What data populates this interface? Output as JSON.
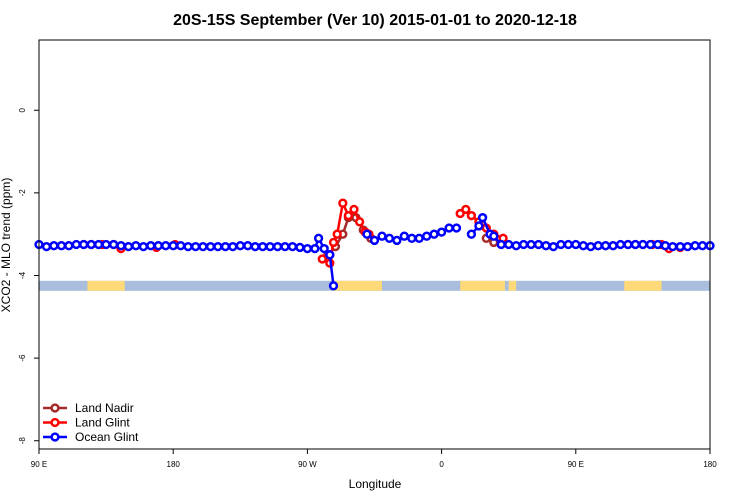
{
  "chart_data": {
    "type": "line",
    "title": "20S-15S September (Ver 10)   2015-01-01 to 2020-12-18",
    "xlabel": "Longitude",
    "ylabel": "XCO2 - MLO trend (ppm)",
    "xlim": [
      0,
      360
    ],
    "ylim": [
      -8.2,
      1.7
    ],
    "xticks": [
      {
        "x": 0,
        "label": "90 E"
      },
      {
        "x": 72,
        "label": "180"
      },
      {
        "x": 144,
        "label": "90 W"
      },
      {
        "x": 216,
        "label": "0"
      },
      {
        "x": 288,
        "label": "90 E"
      },
      {
        "x": 360,
        "label": "180"
      }
    ],
    "yticks": [
      {
        "y": 0,
        "label": "0"
      },
      {
        "y": -2,
        "label": "-2"
      },
      {
        "y": -4,
        "label": "-4"
      },
      {
        "y": -6,
        "label": "-6"
      },
      {
        "y": -8,
        "label": "-8"
      }
    ],
    "land_mask": {
      "y": -4.25,
      "ocean_color": "#a8bedc",
      "land_color": "#fdd979",
      "land_segments": [
        [
          26,
          46
        ],
        [
          158,
          184
        ],
        [
          226,
          250
        ],
        [
          252,
          256
        ],
        [
          314,
          334
        ]
      ]
    },
    "legend": {
      "position": "bottom-left",
      "entries": [
        "Land Nadir",
        "Land Glint",
        "Ocean Glint"
      ]
    },
    "series": [
      {
        "name": "Land Nadir",
        "color": "#a52a2a",
        "segments": [
          {
            "x": [
              155,
              159,
              163,
              166,
              170,
              174,
              178
            ],
            "y": [
              -3.5,
              -3.3,
              -3.0,
              -2.6,
              -2.6,
              -2.9,
              -3.1
            ]
          },
          {
            "x": [
              240,
              244
            ],
            "y": [
              -3.1,
              -3.2
            ]
          }
        ]
      },
      {
        "name": "Land Glint",
        "color": "#ff0000",
        "segments": [
          {
            "x": [
              24,
              28,
              34,
              40,
              44
            ],
            "y": [
              -3.25,
              -3.25,
              -3.25,
              -3.25,
              -3.35
            ]
          },
          {
            "x": [
              63,
              73
            ],
            "y": [
              -3.32,
              -3.25
            ]
          },
          {
            "x": [
              152,
              156,
              158,
              160,
              163,
              166,
              169,
              172,
              175,
              177
            ],
            "y": [
              -3.6,
              -3.7,
              -3.2,
              -3.0,
              -2.25,
              -2.55,
              -2.4,
              -2.7,
              -2.95,
              -3.0
            ]
          },
          {
            "x": [
              226,
              229,
              232,
              236,
              240,
              244,
              249
            ],
            "y": [
              -2.5,
              -2.4,
              -2.55,
              -2.7,
              -2.85,
              -3.0,
              -3.1
            ]
          },
          {
            "x": [
              316,
              320,
              324,
              329,
              334,
              338,
              344
            ],
            "y": [
              -3.25,
              -3.25,
              -3.25,
              -3.25,
              -3.25,
              -3.35,
              -3.32
            ]
          }
        ]
      },
      {
        "name": "Ocean Glint",
        "color": "#0000ff",
        "segments": [
          {
            "x": [
              0,
              4,
              8,
              12,
              16,
              20,
              24,
              28,
              32,
              36,
              40,
              44,
              48,
              52,
              56,
              60,
              64,
              68,
              72,
              76,
              80,
              84,
              88,
              92,
              96,
              100,
              104,
              108,
              112,
              116,
              120,
              124,
              128,
              132,
              136,
              140,
              144,
              148,
              150,
              153,
              156
            ],
            "y": [
              -3.25,
              -3.3,
              -3.28,
              -3.28,
              -3.28,
              -3.25,
              -3.25,
              -3.25,
              -3.25,
              -3.25,
              -3.25,
              -3.28,
              -3.3,
              -3.28,
              -3.3,
              -3.28,
              -3.28,
              -3.28,
              -3.28,
              -3.28,
              -3.3,
              -3.3,
              -3.3,
              -3.3,
              -3.3,
              -3.3,
              -3.3,
              -3.28,
              -3.28,
              -3.3,
              -3.3,
              -3.3,
              -3.3,
              -3.3,
              -3.3,
              -3.32,
              -3.35,
              -3.35,
              -3.1,
              -3.35,
              -3.5
            ]
          },
          {
            "x": [
              156,
              158
            ],
            "y": [
              -3.5,
              -4.25
            ]
          },
          {
            "x": [
              176,
              180,
              184,
              188,
              192,
              196,
              200,
              204,
              208,
              212,
              216,
              220,
              224
            ],
            "y": [
              -3.0,
              -3.15,
              -3.05,
              -3.1,
              -3.15,
              -3.05,
              -3.1,
              -3.1,
              -3.05,
              -3.0,
              -2.95,
              -2.85,
              -2.85
            ]
          },
          {
            "x": [
              232,
              236,
              238,
              242
            ],
            "y": [
              -3.0,
              -2.8,
              -2.6,
              -3.0
            ]
          },
          {
            "x": [
              244,
              248,
              252,
              256,
              260,
              264,
              268,
              272,
              276,
              280,
              284,
              288,
              292,
              296,
              300,
              304,
              308,
              312,
              316,
              320,
              324,
              328,
              332,
              336,
              340,
              344,
              348,
              352,
              356,
              360
            ],
            "y": [
              -3.05,
              -3.25,
              -3.25,
              -3.28,
              -3.25,
              -3.25,
              -3.25,
              -3.28,
              -3.3,
              -3.25,
              -3.25,
              -3.25,
              -3.28,
              -3.3,
              -3.28,
              -3.28,
              -3.28,
              -3.25,
              -3.25,
              -3.25,
              -3.25,
              -3.25,
              -3.25,
              -3.28,
              -3.3,
              -3.3,
              -3.3,
              -3.28,
              -3.28,
              -3.28
            ]
          }
        ]
      }
    ]
  }
}
